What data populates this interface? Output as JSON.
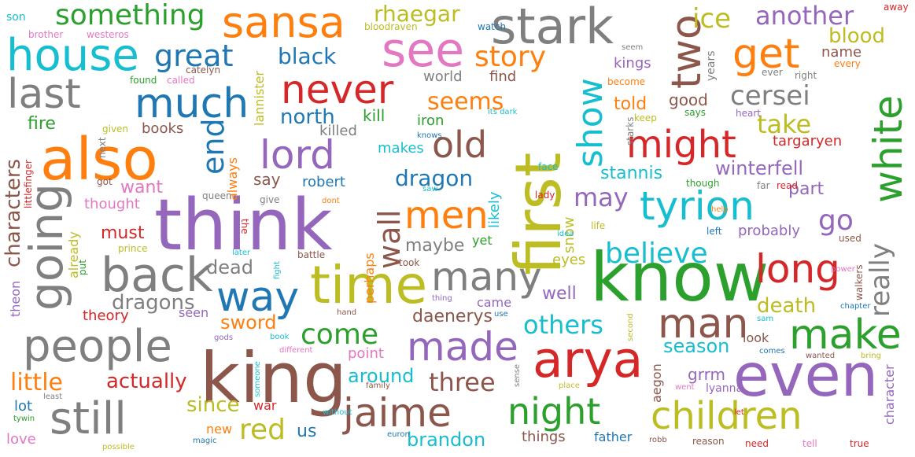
{
  "palette": {
    "blue": "#1f77b4",
    "orange": "#ff7f0e",
    "green": "#2ca02c",
    "red": "#d62728",
    "purple": "#9467bd",
    "brown": "#8c564b",
    "pink": "#e377c2",
    "gray": "#7f7f7f",
    "olive": "#bcbd22",
    "cyan": "#17becf"
  },
  "words": [
    {
      "text": "know",
      "color": "green"
    },
    {
      "text": "think",
      "color": "purple"
    },
    {
      "text": "king",
      "color": "brown"
    },
    {
      "text": "also",
      "color": "orange"
    },
    {
      "text": "even",
      "color": "purple"
    },
    {
      "text": "arya",
      "color": "red"
    },
    {
      "text": "first",
      "color": "olive"
    },
    {
      "text": "time",
      "color": "olive"
    },
    {
      "text": "stark",
      "color": "gray"
    },
    {
      "text": "sansa",
      "color": "orange"
    },
    {
      "text": "house",
      "color": "cyan"
    },
    {
      "text": "see",
      "color": "pink"
    },
    {
      "text": "going",
      "color": "gray"
    },
    {
      "text": "back",
      "color": "gray"
    },
    {
      "text": "people",
      "color": "gray"
    },
    {
      "text": "still",
      "color": "gray"
    },
    {
      "text": "made",
      "color": "purple"
    },
    {
      "text": "jaime",
      "color": "brown"
    },
    {
      "text": "night",
      "color": "green"
    },
    {
      "text": "children",
      "color": "olive"
    },
    {
      "text": "many",
      "color": "gray"
    },
    {
      "text": "man",
      "color": "brown"
    },
    {
      "text": "make",
      "color": "green"
    },
    {
      "text": "long",
      "color": "red"
    },
    {
      "text": "white",
      "color": "green"
    },
    {
      "text": "tyrion",
      "color": "cyan"
    },
    {
      "text": "way",
      "color": "blue"
    },
    {
      "text": "much",
      "color": "blue"
    },
    {
      "text": "last",
      "color": "gray"
    },
    {
      "text": "never",
      "color": "red"
    },
    {
      "text": "lord",
      "color": "purple"
    },
    {
      "text": "old",
      "color": "brown"
    },
    {
      "text": "men",
      "color": "orange"
    },
    {
      "text": "might",
      "color": "red"
    },
    {
      "text": "two",
      "color": "brown"
    },
    {
      "text": "show",
      "color": "cyan"
    },
    {
      "text": "get",
      "color": "orange"
    },
    {
      "text": "great",
      "color": "blue"
    },
    {
      "text": "something",
      "color": "green"
    },
    {
      "text": "ice",
      "color": "olive"
    },
    {
      "text": "another",
      "color": "purple"
    },
    {
      "text": "story",
      "color": "orange"
    },
    {
      "text": "end",
      "color": "blue"
    },
    {
      "text": "really",
      "color": "gray"
    },
    {
      "text": "believe",
      "color": "cyan"
    },
    {
      "text": "wall",
      "color": "brown"
    },
    {
      "text": "cersei",
      "color": "gray"
    },
    {
      "text": "take",
      "color": "olive"
    },
    {
      "text": "come",
      "color": "green"
    },
    {
      "text": "others",
      "color": "cyan"
    },
    {
      "text": "three",
      "color": "brown"
    },
    {
      "text": "red",
      "color": "olive"
    },
    {
      "text": "little",
      "color": "orange"
    },
    {
      "text": "go",
      "color": "purple"
    },
    {
      "text": "may",
      "color": "purple"
    },
    {
      "text": "black",
      "color": "blue"
    },
    {
      "text": "blood",
      "color": "olive"
    },
    {
      "text": "rhaegar",
      "color": "olive"
    },
    {
      "text": "seems",
      "color": "orange"
    },
    {
      "text": "dragon",
      "color": "blue"
    },
    {
      "text": "north",
      "color": "blue"
    },
    {
      "text": "characters",
      "color": "brown"
    },
    {
      "text": "dragons",
      "color": "gray"
    },
    {
      "text": "daenerys",
      "color": "brown"
    },
    {
      "text": "winterfell",
      "color": "purple"
    },
    {
      "text": "stannis",
      "color": "cyan"
    },
    {
      "text": "season",
      "color": "cyan"
    },
    {
      "text": "death",
      "color": "olive"
    },
    {
      "text": "actually",
      "color": "red"
    },
    {
      "text": "around",
      "color": "cyan"
    },
    {
      "text": "brandon",
      "color": "cyan"
    },
    {
      "text": "dead",
      "color": "gray"
    },
    {
      "text": "since",
      "color": "olive"
    },
    {
      "text": "sword",
      "color": "orange"
    },
    {
      "text": "maybe",
      "color": "gray"
    },
    {
      "text": "kill",
      "color": "green"
    },
    {
      "text": "good",
      "color": "brown"
    },
    {
      "text": "told",
      "color": "orange"
    },
    {
      "text": "fire",
      "color": "green"
    },
    {
      "text": "want",
      "color": "pink"
    },
    {
      "text": "must",
      "color": "red"
    },
    {
      "text": "say",
      "color": "brown"
    },
    {
      "text": "grrm",
      "color": "purple"
    },
    {
      "text": "targaryen",
      "color": "red"
    },
    {
      "text": "part",
      "color": "purple"
    },
    {
      "text": "probably",
      "color": "purple"
    },
    {
      "text": "well",
      "color": "purple"
    },
    {
      "text": "us",
      "color": "blue"
    },
    {
      "text": "lot",
      "color": "blue"
    },
    {
      "text": "iron",
      "color": "green"
    },
    {
      "text": "kings",
      "color": "purple"
    },
    {
      "text": "name",
      "color": "brown"
    },
    {
      "text": "likely",
      "color": "cyan"
    },
    {
      "text": "snow",
      "color": "olive"
    },
    {
      "text": "robert",
      "color": "blue"
    },
    {
      "text": "world",
      "color": "gray"
    },
    {
      "text": "find",
      "color": "brown"
    },
    {
      "text": "killed",
      "color": "gray"
    },
    {
      "text": "books",
      "color": "brown"
    },
    {
      "text": "makes",
      "color": "cyan"
    },
    {
      "text": "thought",
      "color": "pink"
    },
    {
      "text": "theory",
      "color": "red"
    },
    {
      "text": "seen",
      "color": "purple"
    },
    {
      "text": "came",
      "color": "purple"
    },
    {
      "text": "eyes",
      "color": "olive"
    },
    {
      "text": "point",
      "color": "pink"
    },
    {
      "text": "look",
      "color": "brown"
    },
    {
      "text": "things",
      "color": "brown"
    },
    {
      "text": "father",
      "color": "blue"
    },
    {
      "text": "new",
      "color": "orange"
    },
    {
      "text": "war",
      "color": "red"
    },
    {
      "text": "yet",
      "color": "green"
    },
    {
      "text": "love",
      "color": "pink"
    },
    {
      "text": "theon",
      "color": "purple"
    },
    {
      "text": "character",
      "color": "purple"
    },
    {
      "text": "aegon",
      "color": "brown"
    },
    {
      "text": "lyanna",
      "color": "purple"
    },
    {
      "text": "perhaps",
      "color": "orange"
    },
    {
      "text": "lannister",
      "color": "olive"
    },
    {
      "text": "always",
      "color": "orange"
    },
    {
      "text": "already",
      "color": "olive"
    },
    {
      "text": "son",
      "color": "cyan"
    },
    {
      "text": "brother",
      "color": "pink"
    },
    {
      "text": "westeros",
      "color": "pink"
    },
    {
      "text": "bloodraven",
      "color": "olive"
    },
    {
      "text": "watch",
      "color": "blue"
    },
    {
      "text": "away",
      "color": "red"
    },
    {
      "text": "seem",
      "color": "gray"
    },
    {
      "text": "every",
      "color": "orange"
    },
    {
      "text": "ever",
      "color": "gray"
    },
    {
      "text": "right",
      "color": "gray"
    },
    {
      "text": "catelyn",
      "color": "brown"
    },
    {
      "text": "found",
      "color": "green"
    },
    {
      "text": "called",
      "color": "pink"
    },
    {
      "text": "become",
      "color": "orange"
    },
    {
      "text": "years",
      "color": "gray"
    },
    {
      "text": "keep",
      "color": "olive"
    },
    {
      "text": "says",
      "color": "green"
    },
    {
      "text": "heart",
      "color": "purple"
    },
    {
      "text": "given",
      "color": "olive"
    },
    {
      "text": "its dark",
      "color": "cyan"
    },
    {
      "text": "knows",
      "color": "blue"
    },
    {
      "text": "next",
      "color": "gray"
    },
    {
      "text": "littlefinger",
      "color": "red"
    },
    {
      "text": "got",
      "color": "brown"
    },
    {
      "text": "queen",
      "color": "gray"
    },
    {
      "text": "give",
      "color": "gray"
    },
    {
      "text": "the",
      "color": "red"
    },
    {
      "text": "dont",
      "color": "orange"
    },
    {
      "text": "face",
      "color": "cyan"
    },
    {
      "text": "saw",
      "color": "cyan"
    },
    {
      "text": "lady",
      "color": "red"
    },
    {
      "text": "starks",
      "color": "gray"
    },
    {
      "text": "though",
      "color": "green"
    },
    {
      "text": "far",
      "color": "gray"
    },
    {
      "text": "read",
      "color": "red"
    },
    {
      "text": "help",
      "color": "orange"
    },
    {
      "text": "idea",
      "color": "cyan"
    },
    {
      "text": "life",
      "color": "olive"
    },
    {
      "text": "left",
      "color": "blue"
    },
    {
      "text": "used",
      "color": "brown"
    },
    {
      "text": "prince",
      "color": "olive"
    },
    {
      "text": "put",
      "color": "green"
    },
    {
      "text": "later",
      "color": "cyan"
    },
    {
      "text": "battle",
      "color": "brown"
    },
    {
      "text": "fight",
      "color": "cyan"
    },
    {
      "text": "took",
      "color": "brown"
    },
    {
      "text": "power",
      "color": "pink"
    },
    {
      "text": "walkers",
      "color": "brown"
    },
    {
      "text": "thing",
      "color": "purple"
    },
    {
      "text": "hand",
      "color": "brown"
    },
    {
      "text": "use",
      "color": "blue"
    },
    {
      "text": "chapter",
      "color": "blue"
    },
    {
      "text": "sam",
      "color": "cyan"
    },
    {
      "text": "second",
      "color": "olive"
    },
    {
      "text": "gods",
      "color": "purple"
    },
    {
      "text": "book",
      "color": "cyan"
    },
    {
      "text": "someone",
      "color": "cyan"
    },
    {
      "text": "different",
      "color": "pink"
    },
    {
      "text": "comes",
      "color": "blue"
    },
    {
      "text": "wanted",
      "color": "brown"
    },
    {
      "text": "bring",
      "color": "olive"
    },
    {
      "text": "sense",
      "color": "gray"
    },
    {
      "text": "family",
      "color": "brown"
    },
    {
      "text": "place",
      "color": "olive"
    },
    {
      "text": "went",
      "color": "pink"
    },
    {
      "text": "least",
      "color": "gray"
    },
    {
      "text": "tywin",
      "color": "green"
    },
    {
      "text": "without",
      "color": "cyan"
    },
    {
      "text": "euron",
      "color": "blue"
    },
    {
      "text": "magic",
      "color": "blue"
    },
    {
      "text": "possible",
      "color": "olive"
    },
    {
      "text": "let",
      "color": "red"
    },
    {
      "text": "robb",
      "color": "brown"
    },
    {
      "text": "reason",
      "color": "brown"
    },
    {
      "text": "need",
      "color": "red"
    },
    {
      "text": "tell",
      "color": "pink"
    },
    {
      "text": "true",
      "color": "red"
    }
  ]
}
